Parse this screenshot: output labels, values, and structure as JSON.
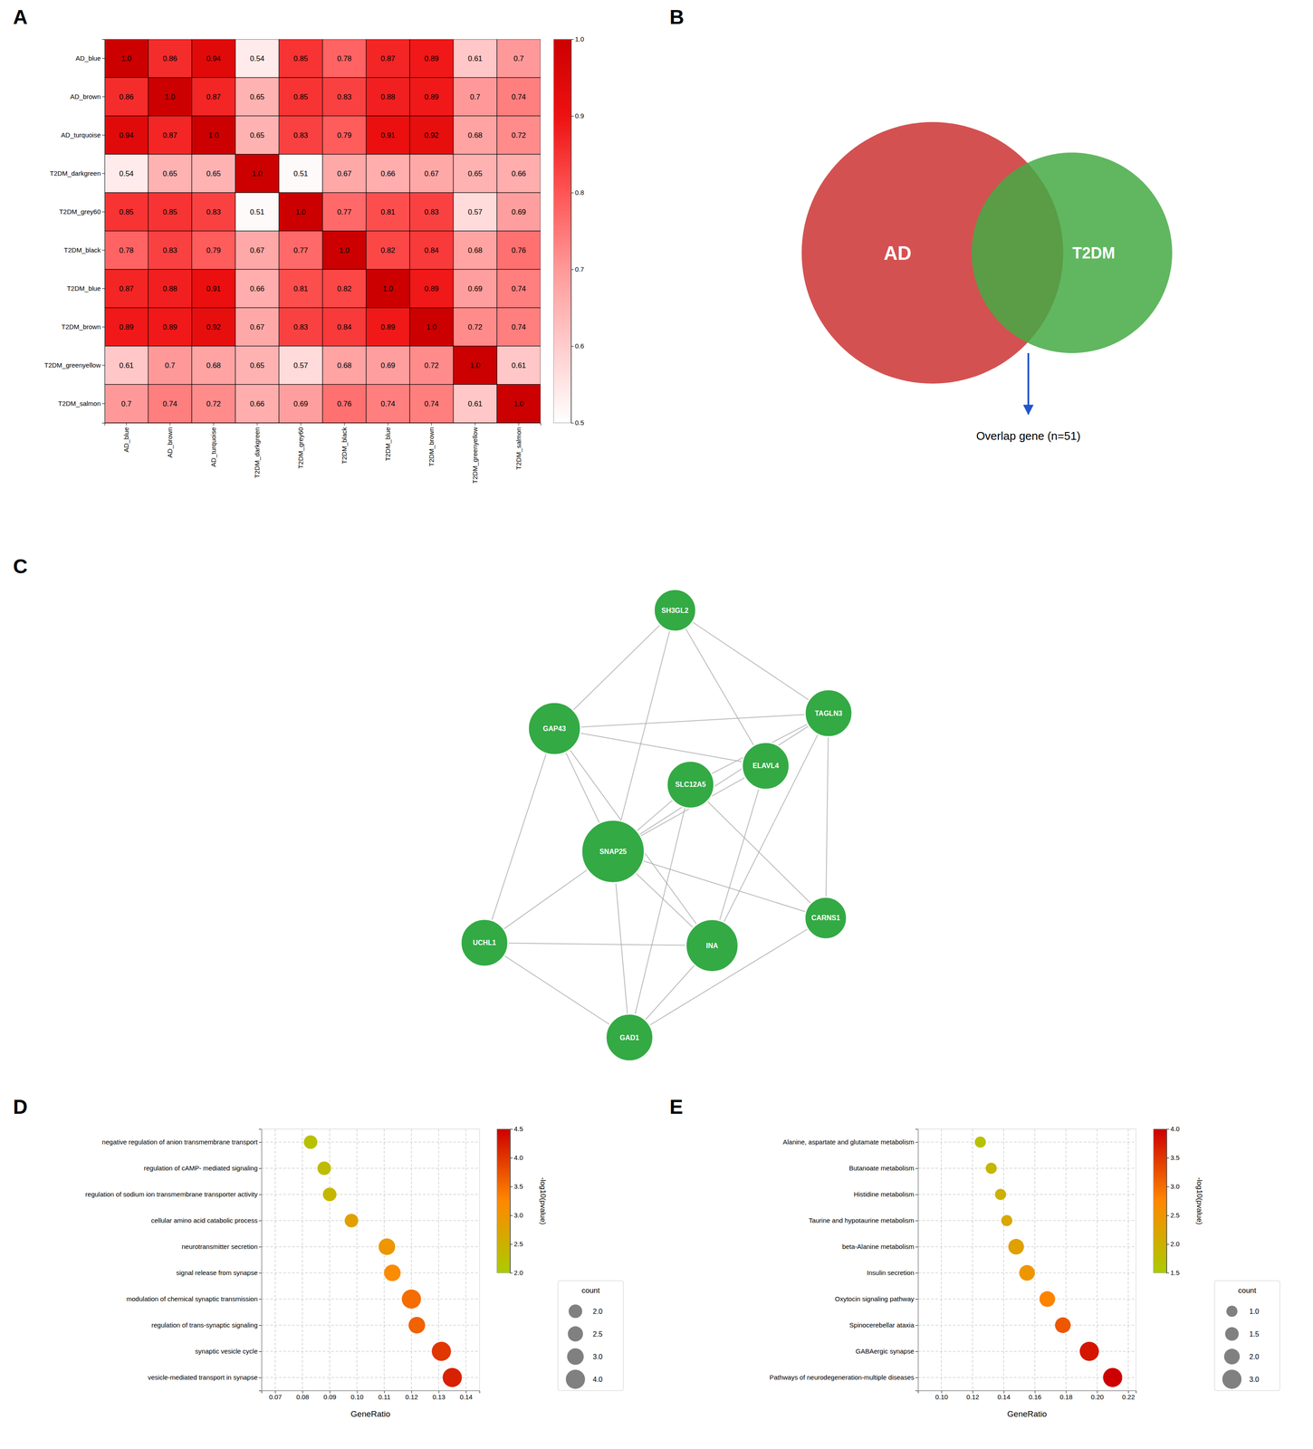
{
  "chart_data": [
    {
      "type": "heatmap",
      "title": "A",
      "categories": [
        "AD_blue",
        "AD_brown",
        "AD_turquoise",
        "T2DM_darkgreen",
        "T2DM_grey60",
        "T2DM_black",
        "T2DM_blue",
        "T2DM_brown",
        "T2DM_greenyellow",
        "T2DM_salmon"
      ],
      "row_categories": [
        "AD_blue",
        "AD_brown",
        "AD_turquoise",
        "T2DM_darkgreen",
        "T2DM_grey60",
        "T2DM_black",
        "T2DM_blue",
        "T2DM_brown",
        "T2DM_greenyellow",
        "T2DM_salmon"
      ],
      "values": [
        [
          1.0,
          0.86,
          0.94,
          0.54,
          0.85,
          0.78,
          0.87,
          0.89,
          0.61,
          0.7
        ],
        [
          0.86,
          1.0,
          0.87,
          0.65,
          0.85,
          0.83,
          0.88,
          0.89,
          0.7,
          0.74
        ],
        [
          0.94,
          0.87,
          1.0,
          0.65,
          0.83,
          0.79,
          0.91,
          0.92,
          0.68,
          0.72
        ],
        [
          0.54,
          0.65,
          0.65,
          1.0,
          0.51,
          0.67,
          0.66,
          0.67,
          0.65,
          0.66
        ],
        [
          0.85,
          0.85,
          0.83,
          0.51,
          1.0,
          0.77,
          0.81,
          0.83,
          0.57,
          0.69
        ],
        [
          0.78,
          0.83,
          0.79,
          0.67,
          0.77,
          1.0,
          0.82,
          0.84,
          0.68,
          0.76
        ],
        [
          0.87,
          0.88,
          0.91,
          0.66,
          0.81,
          0.82,
          1.0,
          0.89,
          0.69,
          0.74
        ],
        [
          0.89,
          0.89,
          0.92,
          0.67,
          0.83,
          0.84,
          0.89,
          1.0,
          0.72,
          0.74
        ],
        [
          0.61,
          0.7,
          0.68,
          0.65,
          0.57,
          0.68,
          0.69,
          0.72,
          1.0,
          0.61
        ],
        [
          0.7,
          0.74,
          0.72,
          0.66,
          0.69,
          0.76,
          0.74,
          0.74,
          0.61,
          1.0
        ]
      ],
      "value_labels": [
        [
          "1.0",
          "0.86",
          "0.94",
          "0.54",
          "0.85",
          "0.78",
          "0.87",
          "0.89",
          "0.61",
          "0.7"
        ],
        [
          "0.86",
          "1.0",
          "0.87",
          "0.65",
          "0.85",
          "0.83",
          "0.88",
          "0.89",
          "0.7",
          "0.74"
        ],
        [
          "0.94",
          "0.87",
          "1.0",
          "0.65",
          "0.83",
          "0.79",
          "0.91",
          "0.92",
          "0.68",
          "0.72"
        ],
        [
          "0.54",
          "0.65",
          "0.65",
          "1.0",
          "0.51",
          "0.67",
          "0.66",
          "0.67",
          "0.65",
          "0.66"
        ],
        [
          "0.85",
          "0.85",
          "0.83",
          "0.51",
          "1.0",
          "0.77",
          "0.81",
          "0.83",
          "0.57",
          "0.69"
        ],
        [
          "0.78",
          "0.83",
          "0.79",
          "0.67",
          "0.77",
          "1.0",
          "0.82",
          "0.84",
          "0.68",
          "0.76"
        ],
        [
          "0.87",
          "0.88",
          "0.91",
          "0.66",
          "0.81",
          "0.82",
          "1.0",
          "0.89",
          "0.69",
          "0.74"
        ],
        [
          "0.89",
          "0.89",
          "0.92",
          "0.67",
          "0.83",
          "0.84",
          "0.89",
          "1.0",
          "0.72",
          "0.74"
        ],
        [
          "0.61",
          "0.7",
          "0.68",
          "0.65",
          "0.57",
          "0.68",
          "0.69",
          "0.72",
          "1.0",
          "0.61"
        ],
        [
          "0.7",
          "0.74",
          "0.72",
          "0.66",
          "0.69",
          "0.76",
          "0.74",
          "0.74",
          "0.61",
          "1.0"
        ]
      ],
      "data_labels": true,
      "colorbar": {
        "range": [
          0.5,
          1.0
        ],
        "ticks": [
          0.5,
          0.6,
          0.7,
          0.8,
          0.9,
          {
            "value": 1.0,
            "label": "1.0"
          }
        ],
        "colors": [
          "#ffffff",
          "#ffcccc",
          "#ff9999",
          "#ff5555",
          "#ee1111",
          "#cc0000"
        ]
      }
    },
    {
      "type": "venn",
      "title": "B",
      "sets": [
        {
          "name": "AD",
          "color": "#cc3333"
        },
        {
          "name": "T2DM",
          "color": "#44aa44"
        }
      ],
      "annotation": {
        "text": "Overlap gene (n=51)",
        "color": "#2255cc"
      }
    },
    {
      "type": "network",
      "title": "C",
      "nodes": [
        "CARNS1",
        "GAD1",
        "SLC12A5",
        "TAGLN3",
        "SNAP25",
        "SH3GL2",
        "ELAVL4",
        "GAP43",
        "INA",
        "UCHL1"
      ],
      "sizes": [
        800,
        900,
        900,
        900,
        1200,
        800,
        900,
        1000,
        1000,
        900
      ],
      "color": "#33aa44",
      "edges": [
        [
          "CARNS1",
          "GAD1"
        ],
        [
          "CARNS1",
          "SLC12A5"
        ],
        [
          "CARNS1",
          "TAGLN3"
        ],
        [
          "GAD1",
          "SLC12A5"
        ],
        [
          "GAD1",
          "UCHL1"
        ],
        [
          "GAD1",
          "INA"
        ],
        [
          "SLC12A5",
          "TAGLN3"
        ],
        [
          "SLC12A5",
          "SNAP25"
        ],
        [
          "TAGLN3",
          "SNAP25"
        ],
        [
          "TAGLN3",
          "SH3GL2"
        ],
        [
          "SNAP25",
          "SH3GL2"
        ],
        [
          "SNAP25",
          "ELAVL4"
        ],
        [
          "SNAP25",
          "GAP43"
        ],
        [
          "SNAP25",
          "INA"
        ],
        [
          "SNAP25",
          "UCHL1"
        ],
        [
          "SH3GL2",
          "ELAVL4"
        ],
        [
          "SH3GL2",
          "GAP43"
        ],
        [
          "ELAVL4",
          "GAP43"
        ],
        [
          "ELAVL4",
          "INA"
        ],
        [
          "GAP43",
          "INA"
        ],
        [
          "GAP43",
          "UCHL1"
        ],
        [
          "INA",
          "UCHL1"
        ],
        [
          "CARNS1",
          "SNAP25"
        ],
        [
          "GAD1",
          "SNAP25"
        ],
        [
          "TAGLN3",
          "GAP43"
        ],
        [
          "TAGLN3",
          "INA"
        ]
      ]
    },
    {
      "type": "scatter",
      "title": "D",
      "categories": [
        "vesicle-mediated transport in synapse",
        "synaptic vesicle cycle",
        "regulation of trans-synaptic signaling",
        "modulation of chemical synaptic transmission",
        "signal release from synapse",
        "neurotransmitter secretion",
        "cellular amino acid catabolic process",
        "regulation of sodium ion transmembrane transporter activity",
        "regulation of cAMP- mediated signaling",
        "negative regulation of anion transmembrane transport"
      ],
      "x": [
        0.135,
        0.131,
        0.122,
        0.12,
        0.113,
        0.111,
        0.098,
        0.09,
        0.088,
        0.083
      ],
      "sizes": [
        4,
        4,
        3,
        4,
        3,
        3,
        2,
        2,
        2,
        2
      ],
      "color_values": [
        4.2,
        4.0,
        3.6,
        3.5,
        3.2,
        3.0,
        2.8,
        2.4,
        2.3,
        2.2
      ],
      "x_label": "GeneRatio",
      "xlim": [
        0.065,
        0.145
      ],
      "xticks": [
        0.07,
        0.08,
        0.09,
        {
          "value": 0.1,
          "label": "0.10"
        },
        0.11,
        0.12,
        0.13,
        0.14
      ],
      "grid": true,
      "legend": "lower right",
      "colorbar": {
        "label": "-log10(pvalue)",
        "range": [
          2.0,
          4.5
        ],
        "ticks": [
          {
            "value": 2.0,
            "label": "2.0"
          },
          2.5,
          {
            "value": 3.0,
            "label": "3.0"
          },
          3.5,
          {
            "value": 4.0,
            "label": "4.0"
          },
          4.5
        ],
        "colors": [
          "#aacc00",
          "#ff8800",
          "#cc0000"
        ]
      },
      "size_legend": {
        "title": "count",
        "values": [
          {
            "value": 2.0,
            "label": "2.0"
          },
          2.5,
          {
            "value": 3.0,
            "label": "3.0"
          },
          {
            "value": 4.0,
            "label": "4.0"
          }
        ]
      }
    },
    {
      "type": "scatter",
      "title": "E",
      "categories": [
        "Pathways of neurodegeneration-multiple diseases",
        "GABAergic synapse",
        "Spinocerebellar ataxia",
        "Oxytocin signaling pathway",
        "Insulin secretion",
        "beta-Alanine metabolism",
        "Taurine and hypotaurine metabolism",
        "Histidine metabolism",
        "Butanoate metabolism",
        "Alanine, aspartate and glutamate metabolism"
      ],
      "x": [
        0.21,
        0.195,
        0.178,
        0.168,
        0.155,
        0.148,
        0.142,
        0.138,
        0.132,
        0.125
      ],
      "sizes": [
        3,
        3,
        2,
        2,
        2,
        2,
        1,
        1,
        1,
        1
      ],
      "color_values": [
        4.0,
        3.8,
        3.2,
        2.8,
        2.5,
        2.3,
        2.2,
        2.0,
        1.9,
        1.7
      ],
      "x_label": "GeneRatio",
      "xlim": [
        0.085,
        0.225
      ],
      "xticks": [
        {
          "value": 0.1,
          "label": "0.10"
        },
        0.12,
        0.14,
        0.16,
        0.18,
        {
          "value": 0.2,
          "label": "0.20"
        },
        0.22
      ],
      "grid": true,
      "legend": "lower right",
      "colorbar": {
        "label": "-log10(pvalue)",
        "range": [
          1.5,
          4.0
        ],
        "ticks": [
          1.5,
          {
            "value": 2.0,
            "label": "2.0"
          },
          2.5,
          {
            "value": 3.0,
            "label": "3.0"
          },
          3.5,
          {
            "value": 4.0,
            "label": "4.0"
          }
        ],
        "colors": [
          "#aacc00",
          "#ff8800",
          "#cc0000"
        ]
      },
      "size_legend": {
        "title": "count",
        "values": [
          {
            "value": 1.0,
            "label": "1.0"
          },
          1.5,
          {
            "value": 2.0,
            "label": "2.0"
          },
          {
            "value": 3.0,
            "label": "3.0"
          }
        ]
      }
    }
  ]
}
